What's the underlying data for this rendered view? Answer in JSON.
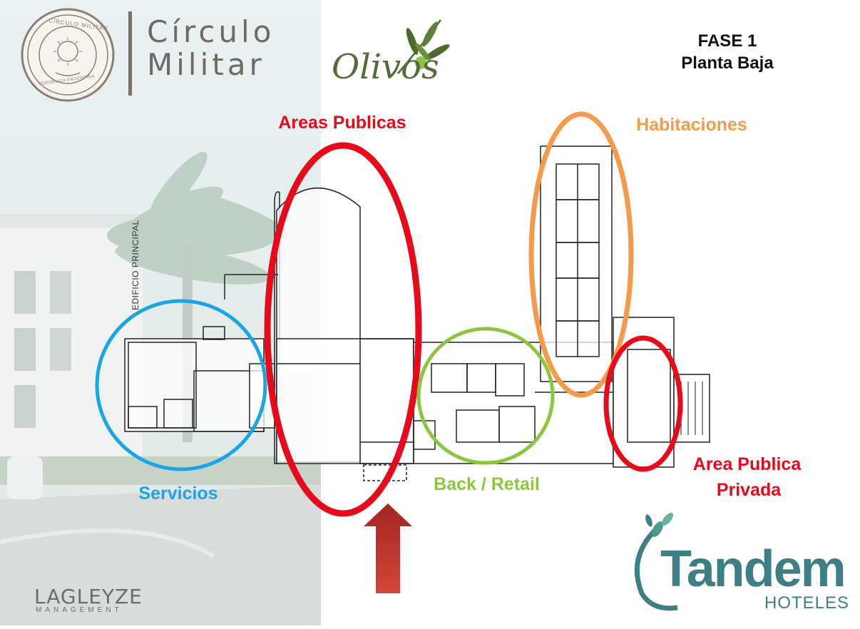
{
  "logo": {
    "title_line1": "Círculo",
    "title_line2": "Militar",
    "seal_ring_text": "CÍRCULO MILITAR",
    "seal_bottom_text": "REPÚBLICA ARGENTINA"
  },
  "olivos": "Olivos",
  "phase": {
    "line1": "FASE 1",
    "line2": "Planta Baja"
  },
  "plan_label": "EDIFICIO PRINCIPAL",
  "zones": [
    {
      "label": "Areas Publicas",
      "color": "#e8091a"
    },
    {
      "label": "Habitaciones",
      "color": "#f39a4b"
    },
    {
      "label": "Servicios",
      "color": "#1aa5e6"
    },
    {
      "label": "Back / Retail",
      "color": "#8cc63f"
    },
    {
      "label": "Area Publica",
      "color": "#e8091a"
    },
    {
      "label": "Privada",
      "color": "#e8091a"
    }
  ],
  "entrance_arrow": {
    "icon": "arrow-up-icon",
    "color": "#c0302b"
  },
  "footer_left": {
    "name": "LAGLEYZE",
    "sub": "MANAGEMENT"
  },
  "footer_right": {
    "name": "Tandem",
    "sub": "HOTELES",
    "color": "#3e7f86"
  }
}
